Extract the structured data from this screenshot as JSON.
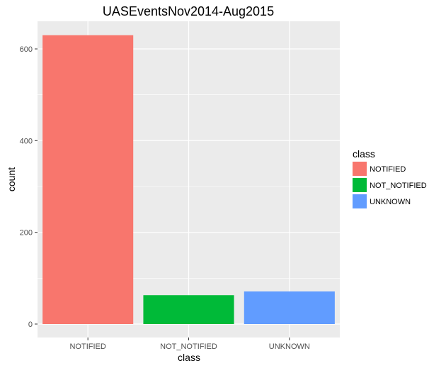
{
  "chart_data": {
    "type": "bar",
    "title": "UASEventsNov2014-Aug2015",
    "xlabel": "class",
    "ylabel": "count",
    "categories": [
      "NOTIFIED",
      "NOT_NOTIFIED",
      "UNKNOWN"
    ],
    "values": [
      630,
      63,
      71
    ],
    "colors": [
      "#F8766D",
      "#00BA38",
      "#619CFF"
    ],
    "ylim": [
      0,
      660
    ],
    "yticks": [
      0,
      200,
      400,
      600
    ],
    "ytick_labels": [
      "0",
      "200",
      "400",
      "600"
    ],
    "grid": true,
    "panel_background": "#EBEBEB",
    "legend": {
      "title": "class",
      "position": "right",
      "entries": [
        "NOTIFIED",
        "NOT_NOTIFIED",
        "UNKNOWN"
      ]
    }
  }
}
